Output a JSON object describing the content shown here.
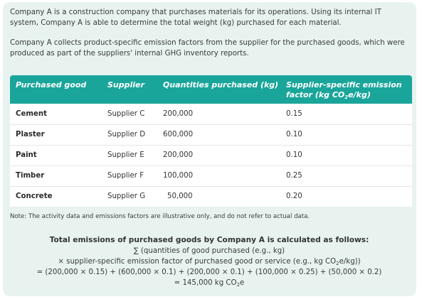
{
  "intro": {
    "p1": "Company A is a construction company that purchases materials for its operations. Using its internal IT system, Company A is able to determine the total weight (kg) purchased for each material.",
    "p2": "Company A collects product-specific emission factors from the supplier for the purchased goods, which were produced as part of the suppliers' internal GHG inventory reports."
  },
  "table": {
    "headers": {
      "good": "Purchased good",
      "supplier": "Supplier",
      "quantity": "Quantities purchased (kg)",
      "factor_line1": "Supplier-specific emission",
      "factor_line2_pre": "factor (kg CO",
      "factor_sub": "2",
      "factor_line2_post": "e/kg)"
    },
    "rows": [
      {
        "good": "Cement",
        "supplier": "Supplier C",
        "quantity": "200,000",
        "factor": "0.15"
      },
      {
        "good": "Plaster",
        "supplier": "Supplier D",
        "quantity": "600,000",
        "factor": "0.10"
      },
      {
        "good": "Paint",
        "supplier": "Supplier E",
        "quantity": "200,000",
        "factor": "0.10"
      },
      {
        "good": "Timber",
        "supplier": "Supplier F",
        "quantity": "100,000",
        "factor": "0.25"
      },
      {
        "good": "Concrete",
        "supplier": "Supplier G",
        "quantity": "50,000",
        "factor": "0.20"
      }
    ]
  },
  "note": "Note: The activity data and emissions factors are illustrative only, and do not refer to actual data.",
  "formula": {
    "heading": "Total emissions of purchased goods by Company A is calculated as follows:",
    "line1": "∑ (quantities of good purchased (e.g., kg)",
    "line2_pre": "× supplier-specific emission factor of purchased good or service (e.g., kg CO",
    "line2_sub": "2",
    "line2_post": "e/kg))",
    "line3": "= (200,000 × 0.15) + (600,000 × 0.1) + (200,000 × 0.1) + (100,000 × 0.25) + (50,000 × 0.2)",
    "line4_pre": "= 145,000 kg CO",
    "line4_sub": "2",
    "line4_post": "e"
  },
  "colors": {
    "panel_bg": "#e8f3f0",
    "header_bg": "#1aa59a"
  }
}
